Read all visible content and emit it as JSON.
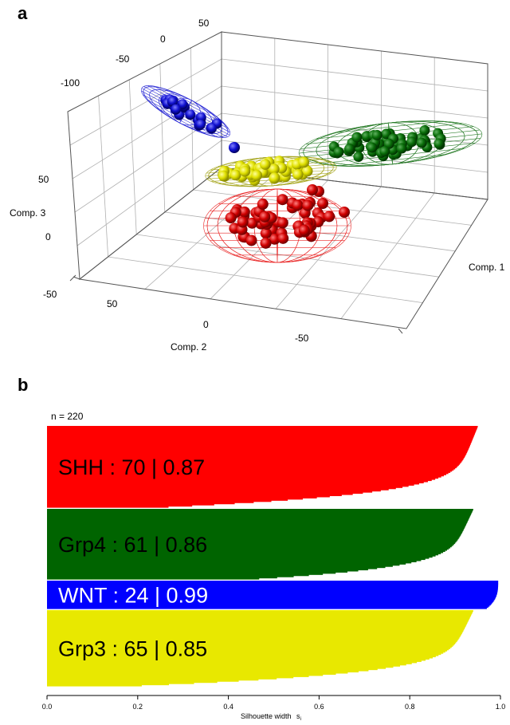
{
  "panel_a": {
    "letter": "a",
    "axis_labels": {
      "comp1": "Comp. 1",
      "comp2": "Comp. 2",
      "comp3": "Comp. 3"
    },
    "comp1_ticks": [
      "-100",
      "-50",
      "0",
      "50"
    ],
    "comp2_ticks": [
      "50",
      "0",
      "-50"
    ],
    "comp3_ticks": [
      "50",
      "0",
      "-50"
    ],
    "colors": {
      "SHH": "#e60000",
      "Grp4": "#006400",
      "WNT": "#1010d0",
      "Grp3": "#e6e600"
    }
  },
  "panel_b": {
    "letter": "b",
    "n_label": "n = 220"
  },
  "chart_data": [
    {
      "type": "scatter",
      "title": "",
      "xlabel": "Comp. 1",
      "ylabel": "Comp. 2",
      "zlabel": "Comp. 3",
      "xlim": [
        -100,
        50
      ],
      "ylim": [
        -50,
        50
      ],
      "zlim": [
        -50,
        50
      ],
      "series": [
        {
          "name": "WNT",
          "color": "#1010d0",
          "count": 24
        },
        {
          "name": "Grp3",
          "color": "#e6e600",
          "count": 65
        },
        {
          "name": "Grp4",
          "color": "#006400",
          "count": 61
        },
        {
          "name": "SHH",
          "color": "#e60000",
          "count": 70
        }
      ]
    },
    {
      "type": "bar",
      "title": "",
      "xlabel": "Silhouette width",
      "xlabel_sub": "i",
      "xlim": [
        0,
        1
      ],
      "xticks": [
        "0.0",
        "0.2",
        "0.4",
        "0.6",
        "0.8",
        "1.0"
      ],
      "n": 220,
      "series": [
        {
          "name": "SHH",
          "label": "SHH : 70 | 0.87",
          "count": 70,
          "mean": 0.87,
          "max": 0.95,
          "min": 0.26,
          "color": "#ff0000",
          "text_color": "#000000"
        },
        {
          "name": "Grp4",
          "label": "Grp4 : 61 | 0.86",
          "count": 61,
          "mean": 0.86,
          "max": 0.94,
          "min": 0.46,
          "color": "#006400",
          "text_color": "#000000"
        },
        {
          "name": "WNT",
          "label": "WNT : 24 | 0.99",
          "count": 24,
          "mean": 0.99,
          "max": 0.995,
          "min": 0.97,
          "color": "#0000ff",
          "text_color": "#ffffff"
        },
        {
          "name": "Grp3",
          "label": "Grp3 : 65 | 0.85",
          "count": 65,
          "mean": 0.85,
          "max": 0.94,
          "min": 0.2,
          "color": "#e8e800",
          "text_color": "#000000"
        }
      ]
    }
  ]
}
